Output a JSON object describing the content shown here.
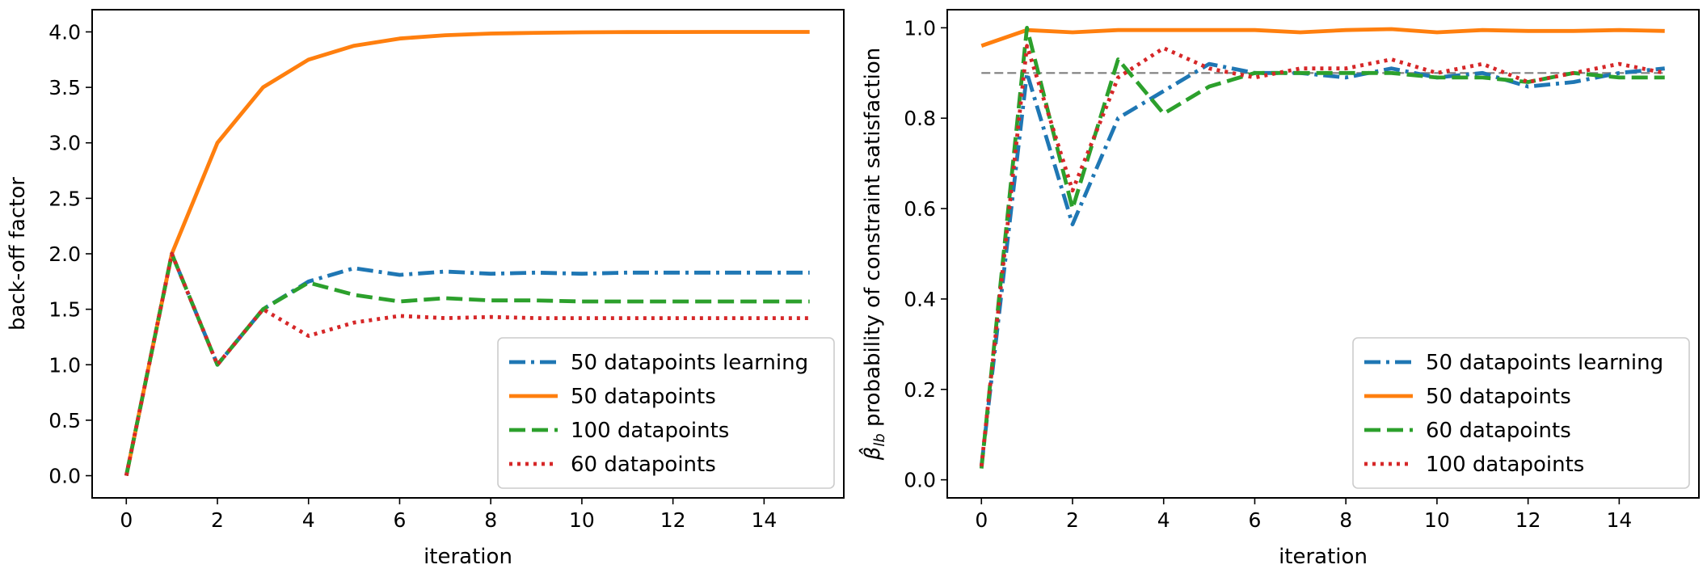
{
  "chart_data": [
    {
      "type": "line",
      "title": "",
      "xlabel": "iteration",
      "ylabel": "back-off factor",
      "xlim": [
        -0.75,
        15.75
      ],
      "ylim": [
        -0.2,
        4.2
      ],
      "xticks": [
        0,
        2,
        4,
        6,
        8,
        10,
        12,
        14
      ],
      "xtick_labels": [
        "0",
        "2",
        "4",
        "6",
        "8",
        "10",
        "12",
        "14"
      ],
      "yticks": [
        0,
        0.5,
        1,
        1.5,
        2,
        2.5,
        3,
        3.5,
        4
      ],
      "ytick_labels": [
        "0.0",
        "0.5",
        "1.0",
        "1.5",
        "2.0",
        "2.5",
        "3.0",
        "3.5",
        "4.0"
      ],
      "legend_position": "lower-right",
      "x": [
        0,
        1,
        2,
        3,
        4,
        5,
        6,
        7,
        8,
        9,
        10,
        11,
        12,
        13,
        14,
        15
      ],
      "series": [
        {
          "name": "50 datapoints learning",
          "color": "#1f77b4",
          "style": "dashdot",
          "values": [
            0,
            2.0,
            1.0,
            1.5,
            1.75,
            1.87,
            1.81,
            1.84,
            1.82,
            1.83,
            1.82,
            1.83,
            1.83,
            1.83,
            1.83,
            1.83
          ]
        },
        {
          "name": "50 datapoints",
          "color": "#ff7f0e",
          "style": "solid",
          "values": [
            0,
            2.0,
            3.0,
            3.5,
            3.75,
            3.875,
            3.94,
            3.97,
            3.985,
            3.992,
            3.996,
            3.998,
            3.999,
            4.0,
            4.0,
            4.0
          ]
        },
        {
          "name": "100 datapoints",
          "color": "#2ca02c",
          "style": "dashed",
          "values": [
            0,
            2.0,
            1.0,
            1.5,
            1.74,
            1.63,
            1.57,
            1.6,
            1.58,
            1.58,
            1.57,
            1.57,
            1.57,
            1.57,
            1.57,
            1.57
          ]
        },
        {
          "name": "60 datapoints",
          "color": "#d62728",
          "style": "dotted",
          "values": [
            0,
            2.0,
            1.0,
            1.5,
            1.26,
            1.38,
            1.44,
            1.42,
            1.43,
            1.42,
            1.42,
            1.42,
            1.42,
            1.42,
            1.42,
            1.42
          ]
        }
      ]
    },
    {
      "type": "line",
      "title": "",
      "xlabel": "iteration",
      "ylabel": "probability of constraint satisfaction",
      "ylabel_symbol": "β̂",
      "ylabel_symbol_sub": "lb",
      "xlim": [
        -0.75,
        15.75
      ],
      "ylim": [
        -0.04,
        1.04
      ],
      "xticks": [
        0,
        2,
        4,
        6,
        8,
        10,
        12,
        14
      ],
      "xtick_labels": [
        "0",
        "2",
        "4",
        "6",
        "8",
        "10",
        "12",
        "14"
      ],
      "yticks": [
        0,
        0.2,
        0.4,
        0.6,
        0.8,
        1.0
      ],
      "ytick_labels": [
        "0.0",
        "0.2",
        "0.4",
        "0.6",
        "0.8",
        "1.0"
      ],
      "reference_line": {
        "y": 0.9,
        "color": "#7f7f7f",
        "style": "dashed"
      },
      "legend_position": "lower-right",
      "x": [
        0,
        1,
        2,
        3,
        4,
        5,
        6,
        7,
        8,
        9,
        10,
        11,
        12,
        13,
        14,
        15
      ],
      "series": [
        {
          "name": "50 datapoints learning",
          "color": "#1f77b4",
          "style": "dashdot",
          "values": [
            0.03,
            0.9,
            0.565,
            0.8,
            0.86,
            0.92,
            0.9,
            0.9,
            0.89,
            0.91,
            0.89,
            0.9,
            0.87,
            0.88,
            0.9,
            0.91
          ]
        },
        {
          "name": "50 datapoints",
          "color": "#ff7f0e",
          "style": "solid",
          "values": [
            0.96,
            0.995,
            0.99,
            0.995,
            0.995,
            0.995,
            0.995,
            0.99,
            0.995,
            0.997,
            0.99,
            0.995,
            0.993,
            0.993,
            0.995,
            0.993
          ]
        },
        {
          "name": "60 datapoints",
          "color": "#2ca02c",
          "style": "dashed",
          "values": [
            0.025,
            1.0,
            0.6,
            0.93,
            0.81,
            0.87,
            0.9,
            0.9,
            0.9,
            0.9,
            0.89,
            0.89,
            0.88,
            0.9,
            0.89,
            0.89
          ]
        },
        {
          "name": "100 datapoints",
          "color": "#d62728",
          "style": "dotted",
          "values": [
            0.03,
            0.96,
            0.64,
            0.89,
            0.955,
            0.91,
            0.89,
            0.91,
            0.91,
            0.93,
            0.9,
            0.92,
            0.88,
            0.9,
            0.92,
            0.9
          ]
        }
      ]
    }
  ]
}
